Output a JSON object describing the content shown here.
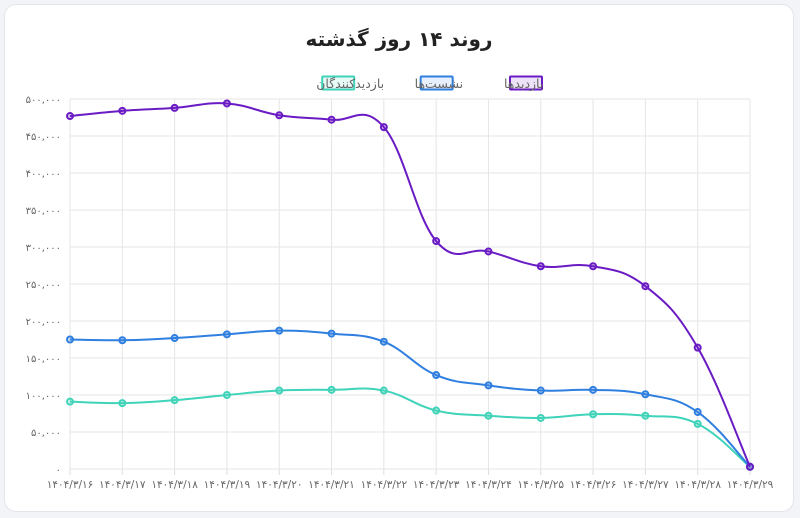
{
  "chart_data": {
    "type": "line",
    "title": "روند ۱۴ روز گذشته",
    "categories": [
      "۱۴۰۴/۳/۱۶",
      "۱۴۰۴/۳/۱۷",
      "۱۴۰۴/۳/۱۸",
      "۱۴۰۴/۳/۱۹",
      "۱۴۰۴/۳/۲۰",
      "۱۴۰۴/۳/۲۱",
      "۱۴۰۴/۳/۲۲",
      "۱۴۰۴/۳/۲۳",
      "۱۴۰۴/۳/۲۴",
      "۱۴۰۴/۳/۲۵",
      "۱۴۰۴/۳/۲۶",
      "۱۴۰۴/۳/۲۷",
      "۱۴۰۴/۳/۲۸",
      "۱۴۰۴/۳/۲۹"
    ],
    "ylim": [
      0,
      500000
    ],
    "yticks": [
      0,
      50000,
      100000,
      150000,
      200000,
      250000,
      300000,
      350000,
      400000,
      450000,
      500000
    ],
    "ytick_labels": [
      "۰",
      "۵۰,۰۰۰",
      "۱۰۰,۰۰۰",
      "۱۵۰,۰۰۰",
      "۲۰۰,۰۰۰",
      "۲۵۰,۰۰۰",
      "۳۰۰,۰۰۰",
      "۳۵۰,۰۰۰",
      "۴۰۰,۰۰۰",
      "۴۵۰,۰۰۰",
      "۵۰۰,۰۰۰"
    ],
    "grid": true,
    "legend_position": "top-center",
    "series": [
      {
        "name": "بازدیدها",
        "color": "#6a1bc4",
        "values": [
          477000,
          484000,
          488000,
          494000,
          478000,
          472000,
          462000,
          308000,
          294000,
          274000,
          274000,
          247000,
          164000,
          3000
        ]
      },
      {
        "name": "نشست‌ها",
        "color": "#2f7fe0",
        "values": [
          175000,
          174000,
          177000,
          182000,
          187000,
          183000,
          172000,
          127000,
          113000,
          106000,
          107000,
          101000,
          77000,
          3000
        ]
      },
      {
        "name": "بازدیدکنندگان",
        "color": "#3fd3b9",
        "values": [
          91000,
          89000,
          93000,
          100000,
          106000,
          107000,
          106000,
          79000,
          72000,
          69000,
          74000,
          72000,
          61000,
          3000
        ]
      }
    ]
  }
}
